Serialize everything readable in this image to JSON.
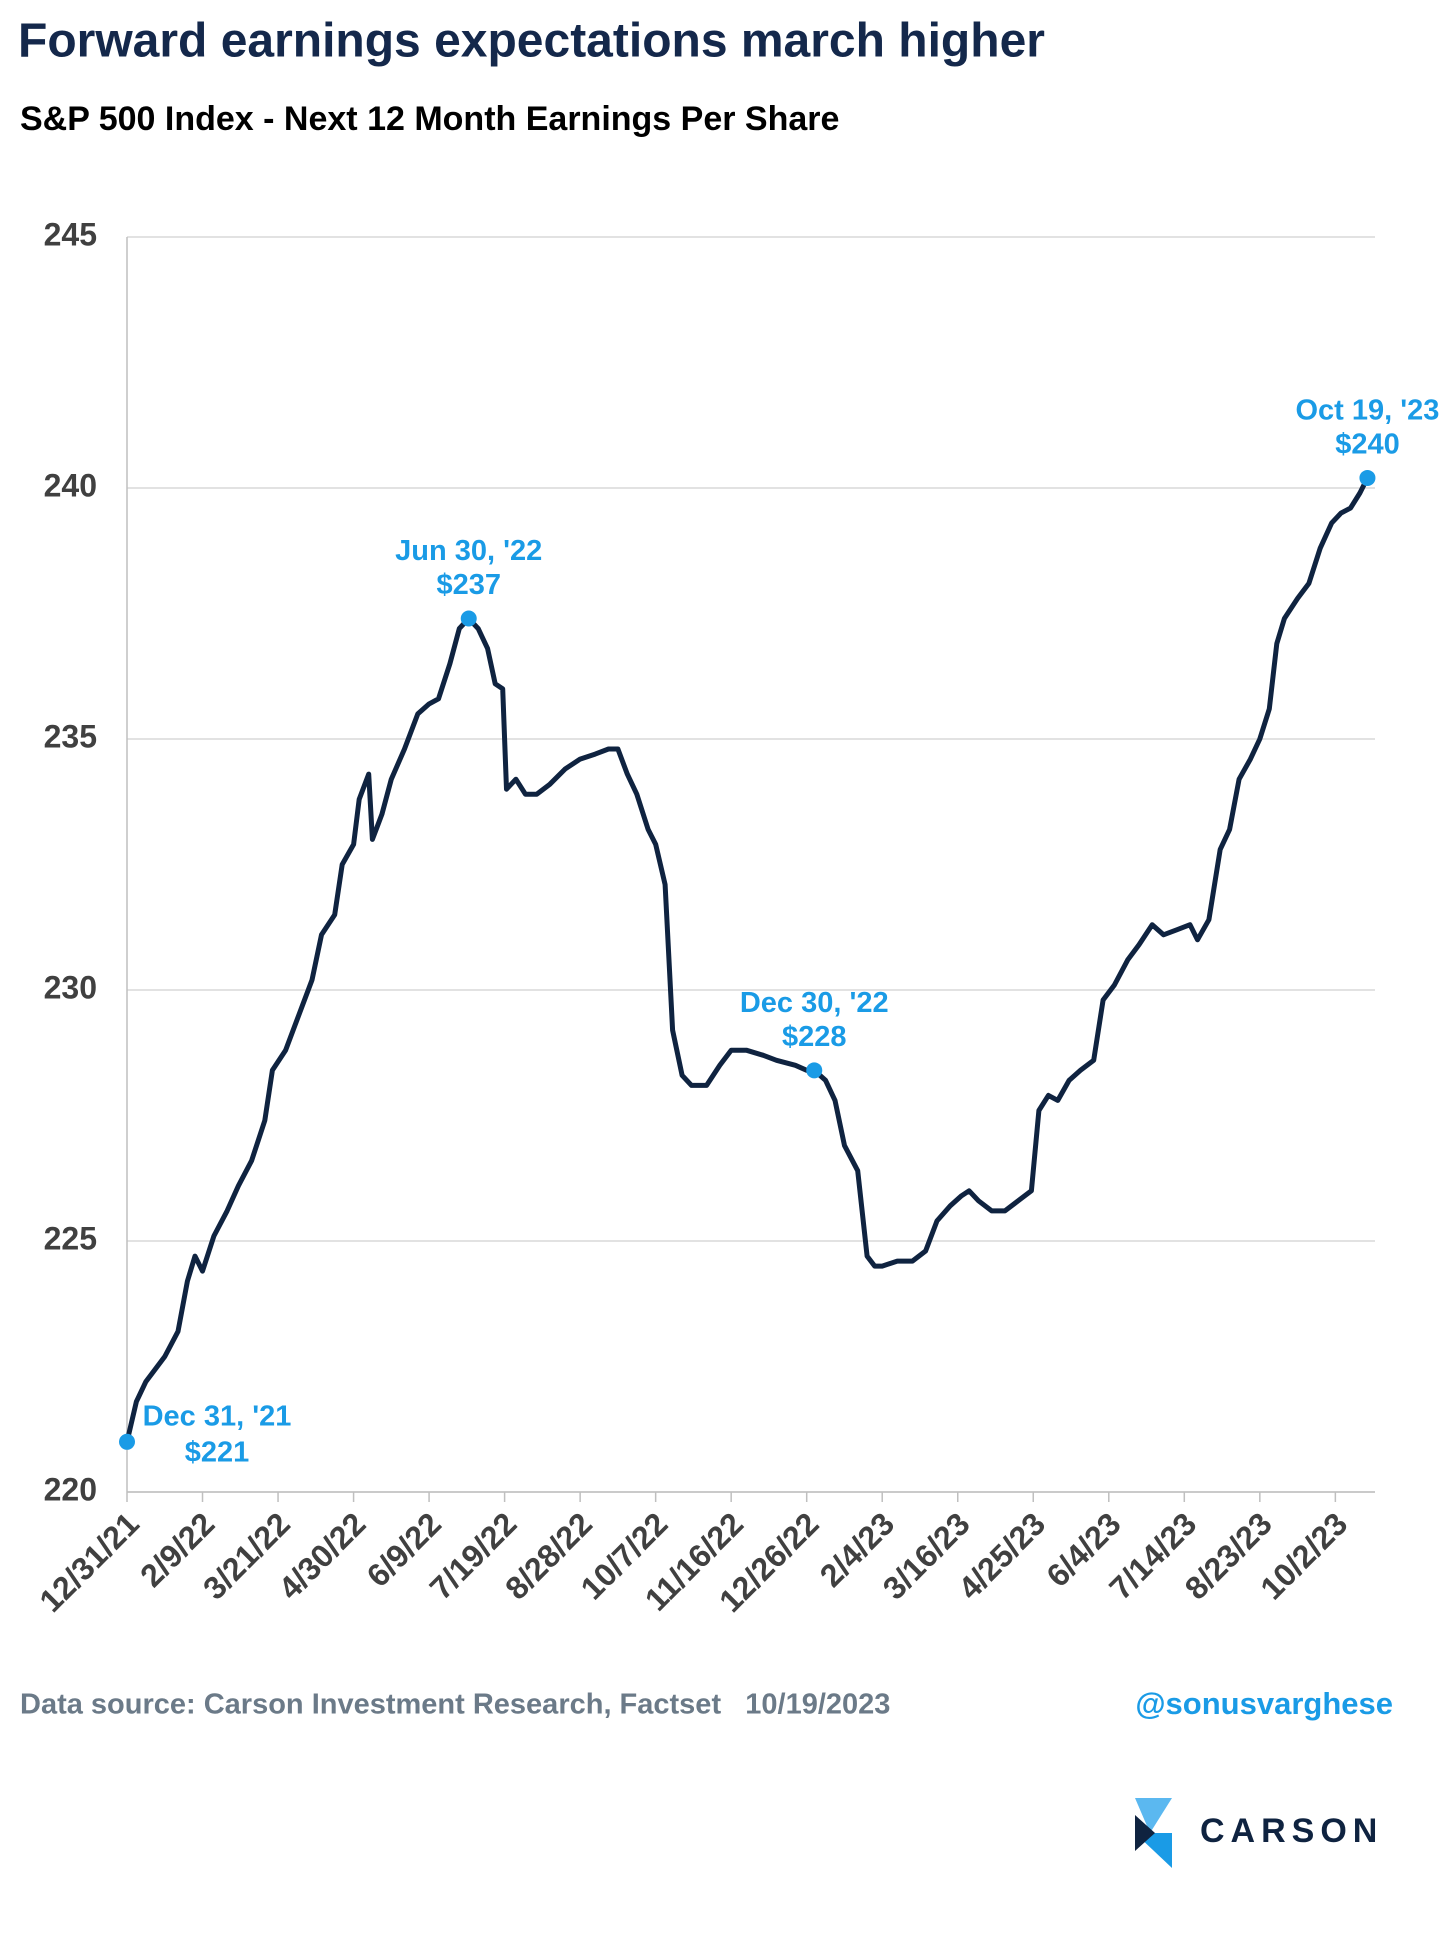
{
  "chart_data": {
    "type": "line",
    "title": "Forward earnings expectations march higher",
    "subtitle": "S&P 500 Index - Next 12 Month Earnings Per Share",
    "x": [
      "12/31/21",
      "1/5/22",
      "1/10/22",
      "1/20/22",
      "1/27/22",
      "2/1/22",
      "2/5/22",
      "2/9/22",
      "2/15/22",
      "2/22/22",
      "2/28/22",
      "3/7/22",
      "3/14/22",
      "3/18/22",
      "3/25/22",
      "4/1/22",
      "4/8/22",
      "4/13/22",
      "4/20/22",
      "4/24/22",
      "4/30/22",
      "5/3/22",
      "5/8/22",
      "5/10/22",
      "5/15/22",
      "5/20/22",
      "5/27/22",
      "6/3/22",
      "6/9/22",
      "6/14/22",
      "6/20/22",
      "6/25/22",
      "6/30/22",
      "7/5/22",
      "7/10/22",
      "7/14/22",
      "7/18/22",
      "7/20/22",
      "7/25/22",
      "7/30/22",
      "8/5/22",
      "8/12/22",
      "8/20/22",
      "8/28/22",
      "9/5/22",
      "9/12/22",
      "9/17/22",
      "9/22/22",
      "9/27/22",
      "10/3/22",
      "10/7/22",
      "10/12/22",
      "10/16/22",
      "10/21/22",
      "10/26/22",
      "11/3/22",
      "11/10/22",
      "11/16/22",
      "11/24/22",
      "12/3/22",
      "12/10/22",
      "12/20/22",
      "12/26/22",
      "12/30/22",
      "1/5/23",
      "1/10/23",
      "1/15/23",
      "1/22/23",
      "1/27/23",
      "1/31/23",
      "2/4/23",
      "2/12/23",
      "2/20/23",
      "2/27/23",
      "3/5/23",
      "3/12/23",
      "3/18/23",
      "3/22/23",
      "3/27/23",
      "4/3/23",
      "4/10/23",
      "4/17/23",
      "4/24/23",
      "4/28/23",
      "5/3/23",
      "5/8/23",
      "5/14/23",
      "5/20/23",
      "5/27/23",
      "6/1/23",
      "6/7/23",
      "6/14/23",
      "6/20/23",
      "6/27/23",
      "7/3/23",
      "7/10/23",
      "7/17/23",
      "7/21/23",
      "7/27/23",
      "8/2/23",
      "8/7/23",
      "8/12/23",
      "8/18/23",
      "8/23/23",
      "8/28/23",
      "9/1/23",
      "9/5/23",
      "9/12/23",
      "9/18/23",
      "9/24/23",
      "9/30/23",
      "10/5/23",
      "10/10/23",
      "10/15/23",
      "10/19/23"
    ],
    "series": [
      {
        "name": "Next 12 Month EPS",
        "color": "#0f2340",
        "values": [
          221.0,
          221.8,
          222.2,
          222.7,
          223.2,
          224.2,
          224.7,
          224.4,
          225.1,
          225.6,
          226.1,
          226.6,
          227.4,
          228.4,
          228.8,
          229.5,
          230.2,
          231.1,
          231.5,
          232.5,
          232.9,
          233.8,
          234.3,
          233.0,
          233.5,
          234.2,
          234.8,
          235.5,
          235.7,
          235.8,
          236.5,
          237.2,
          237.4,
          237.2,
          236.8,
          236.1,
          236.0,
          234.0,
          234.2,
          233.9,
          233.9,
          234.1,
          234.4,
          234.6,
          234.7,
          234.8,
          234.8,
          234.3,
          233.9,
          233.2,
          232.9,
          232.1,
          229.2,
          228.3,
          228.1,
          228.1,
          228.5,
          228.8,
          228.8,
          228.7,
          228.6,
          228.5,
          228.4,
          228.4,
          228.2,
          227.8,
          226.9,
          226.4,
          224.7,
          224.5,
          224.5,
          224.6,
          224.6,
          224.8,
          225.4,
          225.7,
          225.9,
          226.0,
          225.8,
          225.6,
          225.6,
          225.8,
          226.0,
          227.6,
          227.9,
          227.8,
          228.2,
          228.4,
          228.6,
          229.8,
          230.1,
          230.6,
          230.9,
          231.3,
          231.1,
          231.2,
          231.3,
          231.0,
          231.4,
          232.8,
          233.2,
          234.2,
          234.6,
          235.0,
          235.6,
          236.9,
          237.4,
          237.8,
          238.1,
          238.8,
          239.3,
          239.5,
          239.6,
          239.9,
          240.2
        ]
      }
    ],
    "annotations": [
      {
        "x": "12/31/21",
        "y": 221.0,
        "text": [
          "Dec 31, '21",
          "$221"
        ]
      },
      {
        "x": "6/30/22",
        "y": 237.4,
        "text": [
          "Jun 30, '22",
          "$237"
        ]
      },
      {
        "x": "12/30/22",
        "y": 228.4,
        "text": [
          "Dec 30, '22",
          "$228"
        ]
      },
      {
        "x": "10/19/23",
        "y": 240.2,
        "text": [
          "Oct 19, '23",
          "$240"
        ]
      }
    ],
    "annotation_color": "#1a9be6",
    "xlim": [
      "12/31/21",
      "10/23/23"
    ],
    "xticks": [
      "12/31/21",
      "2/9/22",
      "3/21/22",
      "4/30/22",
      "6/9/22",
      "7/19/22",
      "8/28/22",
      "10/7/22",
      "11/16/22",
      "12/26/22",
      "2/4/23",
      "3/16/23",
      "4/25/23",
      "6/4/23",
      "7/14/23",
      "8/23/23",
      "10/2/23"
    ],
    "ylim": [
      220,
      245
    ],
    "yticks": [
      220,
      225,
      230,
      235,
      240,
      245
    ],
    "grid": true,
    "source": "Data source: Carson Investment Research, Factset   10/19/2023",
    "handle": "@sonusvarghese",
    "logo": "CARSON"
  }
}
